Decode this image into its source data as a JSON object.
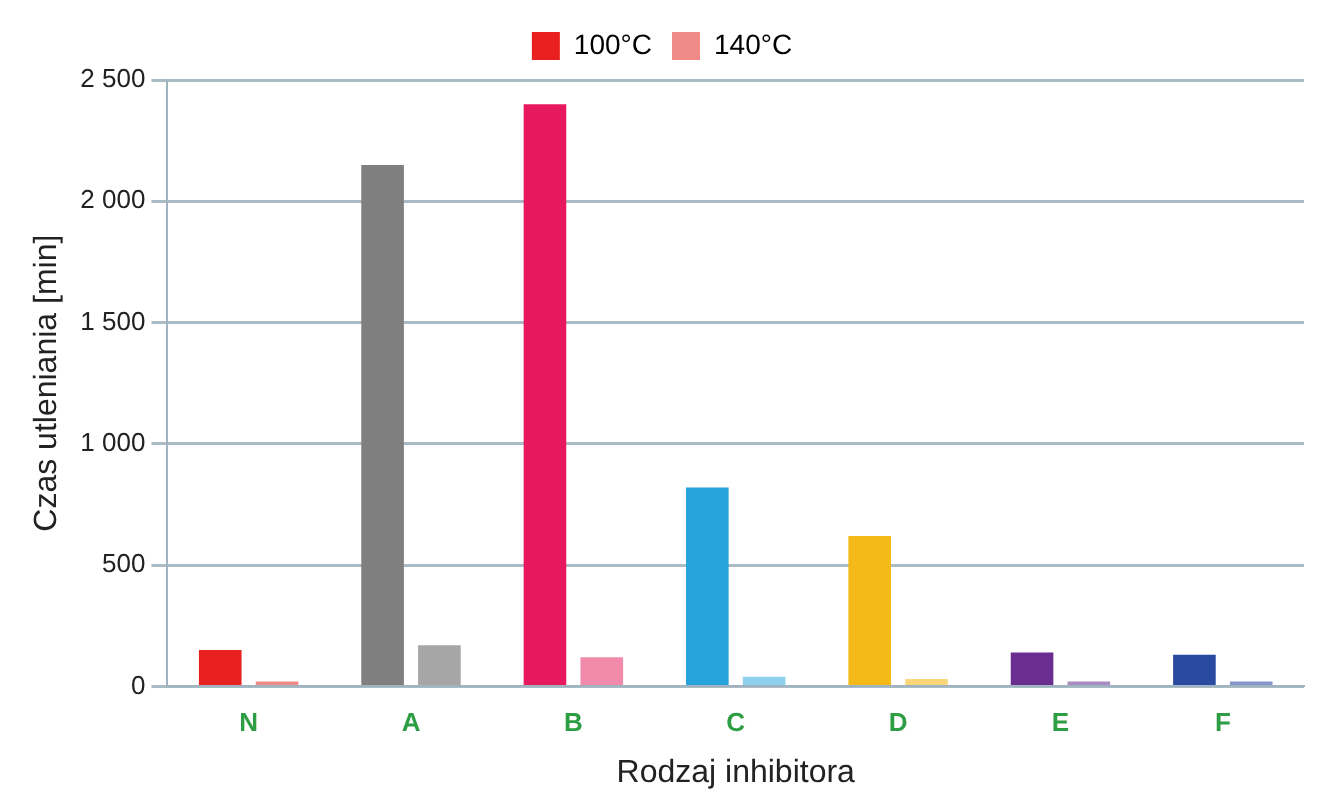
{
  "chart_data": {
    "type": "bar",
    "xlabel": "Rodzaj inhibitora",
    "ylabel": "Czas utleniania [min]",
    "categories": [
      "N",
      "A",
      "B",
      "C",
      "D",
      "E",
      "F"
    ],
    "series": [
      {
        "name": "100°C",
        "color": "#e8201f",
        "colors": [
          "#e8201f",
          "#7f7f7f",
          "#e8185f",
          "#27a3dc",
          "#f5b918",
          "#6a2e91",
          "#2a4aa0"
        ],
        "values": [
          150,
          2150,
          2400,
          820,
          620,
          140,
          130
        ]
      },
      {
        "name": "140°C",
        "color": "#f08a89",
        "colors": [
          "#f08a89",
          "#a6a6a6",
          "#f28aab",
          "#8fd0ee",
          "#f9d67a",
          "#a88cc0",
          "#8496cc"
        ],
        "values": [
          20,
          170,
          120,
          40,
          30,
          20,
          20
        ]
      }
    ],
    "ylim": [
      0,
      2500
    ],
    "yticks": [
      0,
      500,
      {
        "value": 1000,
        "label": "1 000"
      },
      {
        "value": 1500,
        "label": "1 500"
      },
      {
        "value": 2000,
        "label": "2 000"
      },
      {
        "value": 2500,
        "label": "2 500"
      }
    ],
    "grid": "y",
    "legend": "top"
  }
}
